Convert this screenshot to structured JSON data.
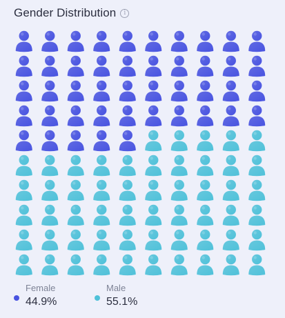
{
  "title": "Gender Distribution",
  "info_icon": "info-icon",
  "colors": {
    "female": "#4853e0",
    "male": "#4fc1d9",
    "background": "#eef0fa"
  },
  "chart_data": {
    "type": "pictograph",
    "total_icons": 100,
    "columns": 10,
    "rows": 10,
    "icon": "person-icon",
    "series": [
      {
        "name": "Female",
        "value": 44.9,
        "value_label": "44.9%",
        "icon_count": 45,
        "color": "#4853e0"
      },
      {
        "name": "Male",
        "value": 55.1,
        "value_label": "55.1%",
        "icon_count": 55,
        "color": "#4fc1d9"
      }
    ],
    "legend_position": "bottom-left"
  },
  "legend": [
    {
      "label": "Female",
      "value": "44.9%"
    },
    {
      "label": "Male",
      "value": "55.1%"
    }
  ]
}
